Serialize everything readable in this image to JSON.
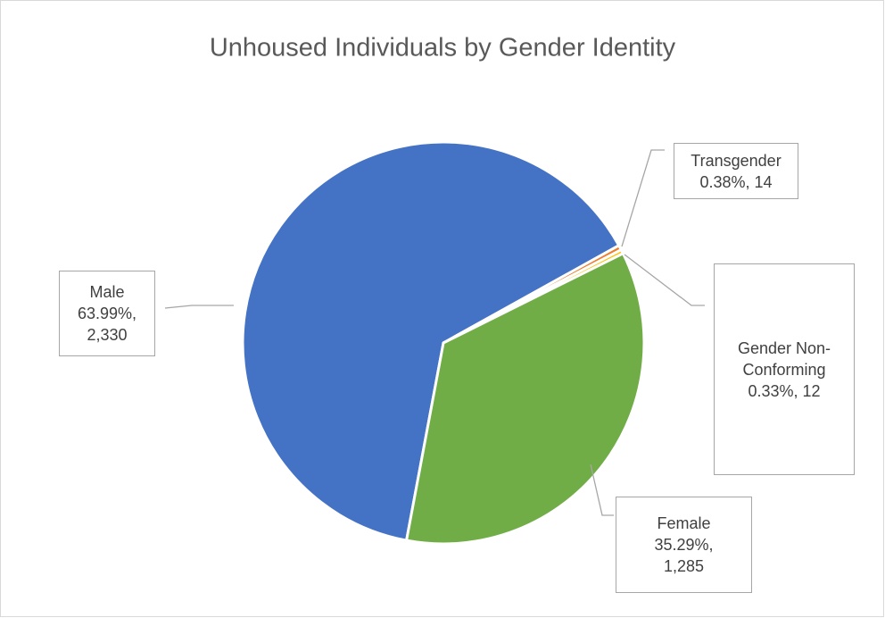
{
  "chart_data": {
    "type": "pie",
    "title": "Unhoused Individuals by Gender Identity",
    "categories": [
      "Male",
      "Transgender",
      "Gender Non-Conforming",
      "Female"
    ],
    "values": [
      2330,
      14,
      12,
      1285
    ],
    "value_labels": [
      "63.99%, 2,330",
      "0.38%, 14",
      "0.33%, 12",
      "35.29%, 1,285"
    ],
    "colors": [
      "#4472c4",
      "#ed7d31",
      "#ffc000",
      "#70ad47"
    ]
  }
}
